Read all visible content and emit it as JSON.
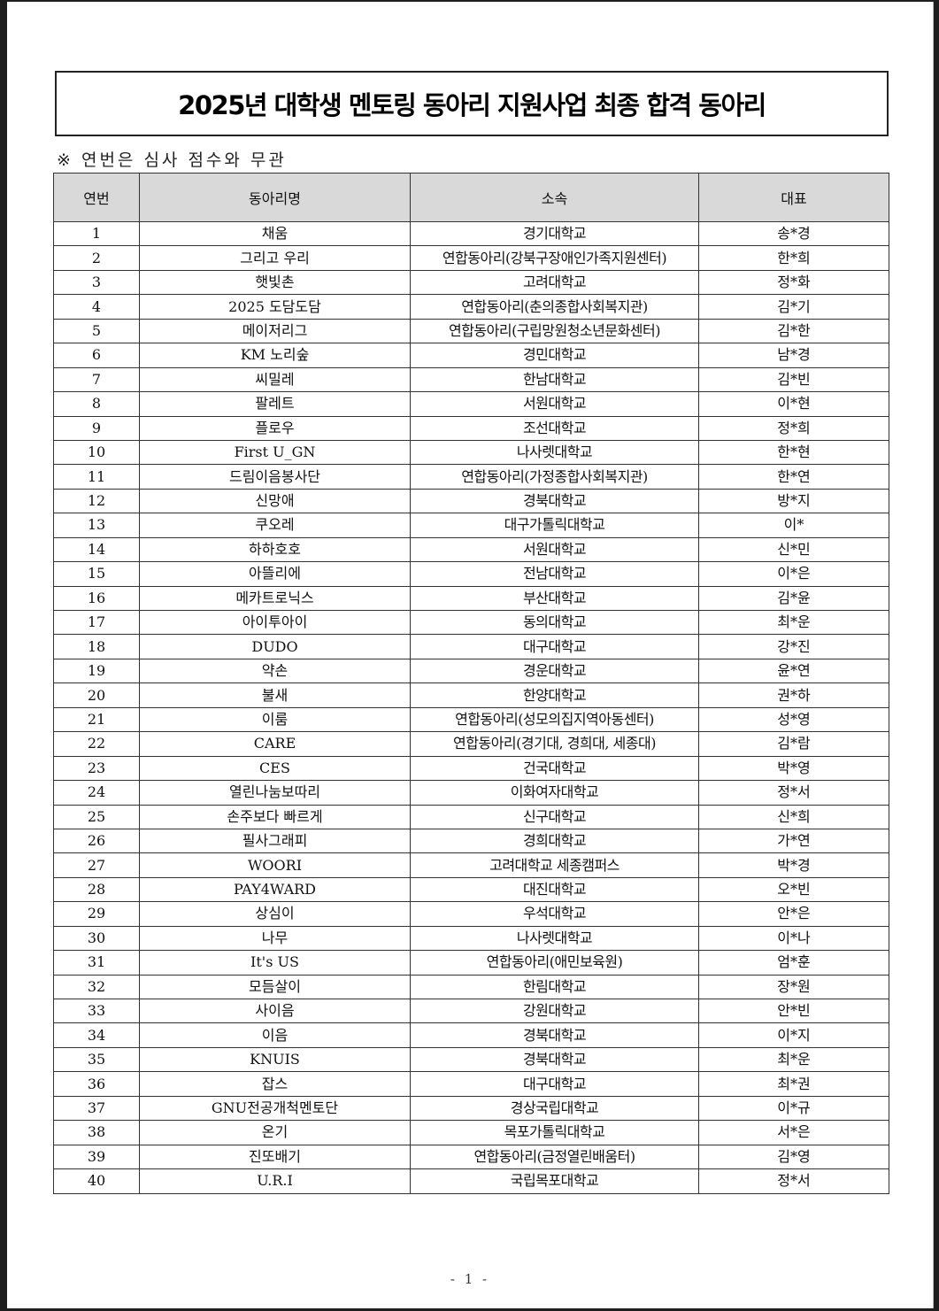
{
  "document": {
    "title": "2025년 대학생 멘토링 동아리 지원사업 최종 합격 동아리",
    "note": "※ 연번은 심사 점수와 무관",
    "page_number": "- 1 -",
    "highlight_color": "#e03020"
  },
  "table": {
    "headers": [
      "연번",
      "동아리명",
      "소속",
      "대표"
    ],
    "rows": [
      [
        "1",
        "채움",
        "경기대학교",
        "송*경"
      ],
      [
        "2",
        "그리고 우리",
        "연합동아리(강북구장애인가족지원센터)",
        "한*희"
      ],
      [
        "3",
        "햇빛촌",
        "고려대학교",
        "정*화"
      ],
      [
        "4",
        "2025 도담도담",
        "연합동아리(춘의종합사회복지관)",
        "김*기"
      ],
      [
        "5",
        "메이저리그",
        "연합동아리(구립망원청소년문화센터)",
        "김*한"
      ],
      [
        "6",
        "KM 노리숲",
        "경민대학교",
        "남*경"
      ],
      [
        "7",
        "씨밀레",
        "한남대학교",
        "김*빈"
      ],
      [
        "8",
        "팔레트",
        "서원대학교",
        "이*현"
      ],
      [
        "9",
        "플로우",
        "조선대학교",
        "정*희"
      ],
      [
        "10",
        "First U_GN",
        "나사렛대학교",
        "한*현"
      ],
      [
        "11",
        "드림이음봉사단",
        "연합동아리(가정종합사회복지관)",
        "한*연"
      ],
      [
        "12",
        "신망애",
        "경북대학교",
        "방*지"
      ],
      [
        "13",
        "쿠오레",
        "대구가톨릭대학교",
        "이*"
      ],
      [
        "14",
        "하하호호",
        "서원대학교",
        "신*민"
      ],
      [
        "15",
        "아뜰리에",
        "전남대학교",
        "이*은"
      ],
      [
        "16",
        "메카트로닉스",
        "부산대학교",
        "김*윤"
      ],
      [
        "17",
        "아이투아이",
        "동의대학교",
        "최*운"
      ],
      [
        "18",
        "DUDO",
        "대구대학교",
        "강*진"
      ],
      [
        "19",
        "약손",
        "경운대학교",
        "윤*연"
      ],
      [
        "20",
        "불새",
        "한양대학교",
        "권*하"
      ],
      [
        "21",
        "이룸",
        "연합동아리(성모의집지역아동센터)",
        "성*영"
      ],
      [
        "22",
        "CARE",
        "연합동아리(경기대, 경희대, 세종대)",
        "김*람"
      ],
      [
        "23",
        "CES",
        "건국대학교",
        "박*영"
      ],
      [
        "24",
        "열린나눔보따리",
        "이화여자대학교",
        "정*서"
      ],
      [
        "25",
        "손주보다 빠르게",
        "신구대학교",
        "신*희"
      ],
      [
        "26",
        "필사그래피",
        "경희대학교",
        "가*연"
      ],
      [
        "27",
        "WOORI",
        "고려대학교 세종캠퍼스",
        "박*경"
      ],
      [
        "28",
        "PAY4WARD",
        "대진대학교",
        "오*빈"
      ],
      [
        "29",
        "상심이",
        "우석대학교",
        "안*은"
      ],
      [
        "30",
        "나무",
        "나사렛대학교",
        "이*나"
      ],
      [
        "31",
        "It's US",
        "연합동아리(애민보육원)",
        "엄*훈"
      ],
      [
        "32",
        "모듬살이",
        "한림대학교",
        "장*원"
      ],
      [
        "33",
        "사이음",
        "강원대학교",
        "안*빈"
      ],
      [
        "34",
        "이음",
        "경북대학교",
        "이*지"
      ],
      [
        "35",
        "KNUIS",
        "경북대학교",
        "최*운"
      ],
      [
        "36",
        "잡스",
        "대구대학교",
        "최*권"
      ],
      [
        "37",
        "GNU전공개척멘토단",
        "경상국립대학교",
        "이*규"
      ],
      [
        "38",
        "온기",
        "목포가톨릭대학교",
        "서*은"
      ],
      [
        "39",
        "진또배기",
        "연합동아리(금정열린배움터)",
        "김*영"
      ],
      [
        "40",
        "U.R.I",
        "국립목포대학교",
        "정*서"
      ]
    ],
    "underlined_row": "36"
  }
}
